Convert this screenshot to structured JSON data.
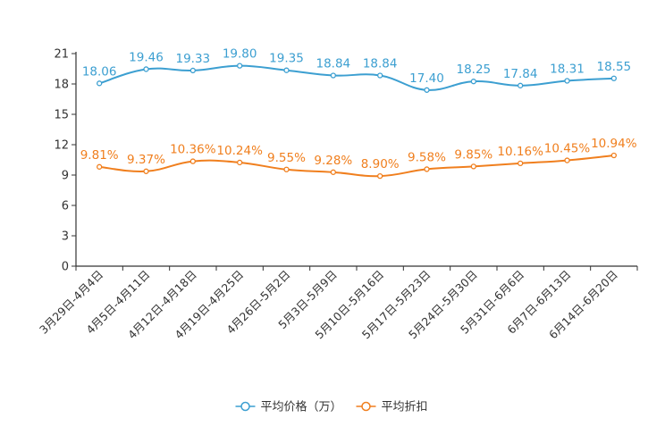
{
  "chart_data": {
    "type": "line",
    "title": "",
    "xlabel": "",
    "ylabel": "",
    "ylim": [
      0,
      21
    ],
    "yticks": [
      0,
      3,
      6,
      9,
      12,
      15,
      18,
      21
    ],
    "grid": false,
    "legend_position": "bottom-center",
    "categories": [
      "3月29日-4月4日",
      "4月5日-4月11日",
      "4月12日-4月18日",
      "4月19日-4月25日",
      "4月26日-5月2日",
      "5月3日-5月9日",
      "5月10日-5月16日",
      "5月17日-5月23日",
      "5月24日-5月30日",
      "5月31日-6月6日",
      "6月7日-6月13日",
      "6月14日-6月20日"
    ],
    "series": [
      {
        "name": "平均价格（万）",
        "color": "#3c9fd1",
        "values": [
          18.06,
          19.46,
          19.33,
          19.8,
          19.35,
          18.84,
          18.84,
          17.4,
          18.25,
          17.84,
          18.31,
          18.55
        ],
        "labels": [
          "18.06",
          "19.46",
          "19.33",
          "19.80",
          "19.35",
          "18.84",
          "18.84",
          "17.40",
          "18.25",
          "17.84",
          "18.31",
          "18.55"
        ]
      },
      {
        "name": "平均折扣",
        "color": "#f07f1e",
        "values": [
          9.81,
          9.37,
          10.36,
          10.24,
          9.55,
          9.28,
          8.9,
          9.58,
          9.85,
          10.16,
          10.45,
          10.94
        ],
        "labels": [
          "9.81%",
          "9.37%",
          "10.36%",
          "10.24%",
          "9.55%",
          "9.28%",
          "8.90%",
          "9.58%",
          "9.85%",
          "10.16%",
          "10.45%",
          "10.94%"
        ]
      }
    ]
  }
}
